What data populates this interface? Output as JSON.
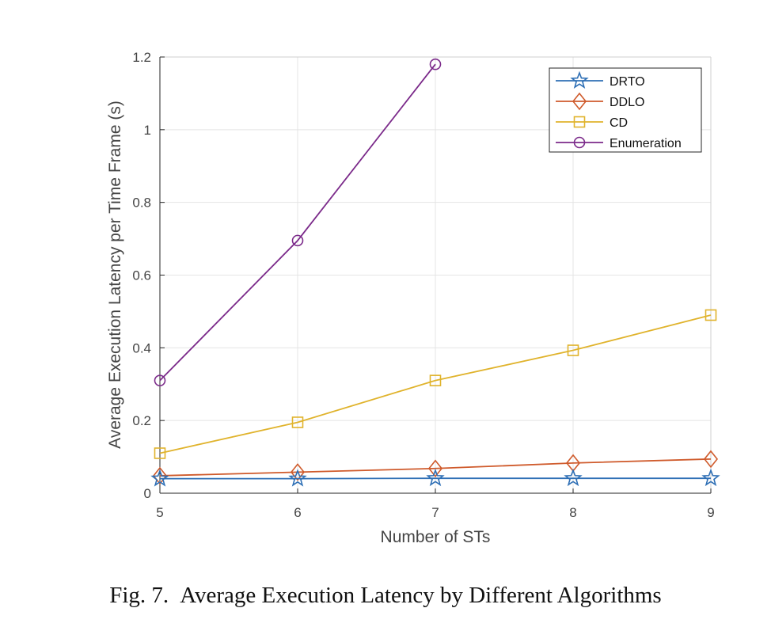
{
  "chart_data": {
    "type": "line",
    "title": "",
    "xlabel": "Number of STs",
    "ylabel": "Average Execution Latency per Time Frame (s)",
    "xlim": [
      5,
      9
    ],
    "ylim": [
      0,
      1.2
    ],
    "xticks": [
      5,
      6,
      7,
      8,
      9
    ],
    "yticks": [
      0,
      0.2,
      0.4,
      0.6,
      0.8,
      1,
      1.2
    ],
    "xtick_labels": [
      "5",
      "6",
      "7",
      "8",
      "9"
    ],
    "ytick_labels": [
      "0",
      "0.2",
      "0.4",
      "0.6",
      "0.8",
      "1",
      "1.2"
    ],
    "grid": true,
    "legend_position": "top-right",
    "series": [
      {
        "name": "DRTO",
        "marker": "star",
        "color": "#2e6fb5",
        "x": [
          5,
          6,
          7,
          8,
          9
        ],
        "y": [
          0.04,
          0.04,
          0.041,
          0.041,
          0.041
        ]
      },
      {
        "name": "DDLO",
        "marker": "diamond",
        "color": "#cf5a2b",
        "x": [
          5,
          6,
          7,
          8,
          9
        ],
        "y": [
          0.048,
          0.058,
          0.068,
          0.083,
          0.094
        ]
      },
      {
        "name": "CD",
        "marker": "square",
        "color": "#e0b32c",
        "x": [
          5,
          6,
          7,
          8,
          9
        ],
        "y": [
          0.11,
          0.195,
          0.31,
          0.393,
          0.49
        ]
      },
      {
        "name": "Enumeration",
        "marker": "circle",
        "color": "#7b2a8a",
        "x": [
          5,
          6,
          7
        ],
        "y": [
          0.31,
          0.695,
          1.18
        ]
      }
    ]
  },
  "caption": {
    "label": "Fig. 7.",
    "text": "Average Execution Latency by Different Algorithms"
  }
}
